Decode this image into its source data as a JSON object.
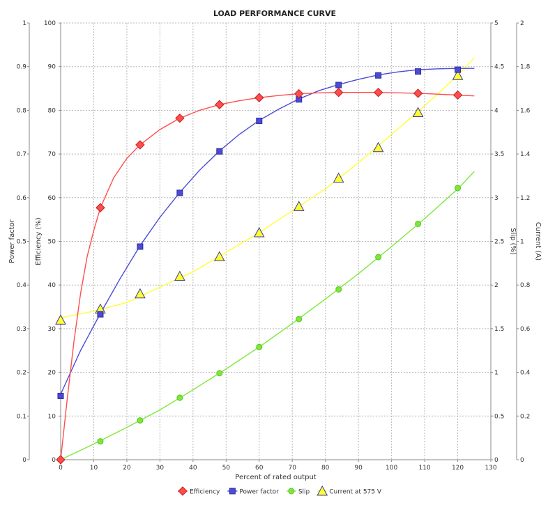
{
  "chart_data": {
    "type": "line",
    "title": "LOAD PERFORMANCE CURVE",
    "xlabel": "Percent of rated output",
    "xlim": [
      0,
      130
    ],
    "x_ticks": [
      0,
      10,
      20,
      30,
      40,
      50,
      60,
      70,
      80,
      90,
      100,
      110,
      120,
      130
    ],
    "grid": true,
    "legend_position": "bottom",
    "axes": [
      {
        "id": "pf",
        "label": "Power factor",
        "side": "left",
        "range": [
          0,
          1
        ],
        "ticks": [
          "0",
          "0.1",
          "0.2",
          "0.3",
          "0.4",
          "0.5",
          "0.6",
          "0.7",
          "0.8",
          "0.9",
          "1"
        ]
      },
      {
        "id": "eff",
        "label": "Efficiency (%)",
        "side": "left",
        "range": [
          0,
          100
        ],
        "ticks": [
          "0",
          "10",
          "20",
          "30",
          "40",
          "50",
          "60",
          "70",
          "80",
          "90",
          "100"
        ]
      },
      {
        "id": "slip",
        "label": "Slip (%)",
        "side": "right",
        "range": [
          0,
          5
        ],
        "ticks": [
          "0",
          "0.5",
          "1",
          "1.5",
          "2",
          "2.5",
          "3",
          "3.5",
          "4",
          "4.5",
          "5"
        ]
      },
      {
        "id": "cur",
        "label": "Current (A)",
        "side": "right",
        "range": [
          0,
          2
        ],
        "ticks": [
          "0",
          "0.2",
          "0.4",
          "0.6",
          "0.8",
          "1",
          "1.2",
          "1.4",
          "1.6",
          "1.8",
          "2"
        ]
      }
    ],
    "series": [
      {
        "name": "Efficiency",
        "axis": "eff",
        "color": "#ff4d4d",
        "marker": "diamond",
        "x": [
          0,
          12,
          24,
          36,
          48,
          60,
          72,
          84,
          96,
          108,
          120
        ],
        "y": [
          0,
          57.7,
          72.1,
          78.2,
          81.3,
          82.9,
          83.8,
          84.1,
          84.1,
          83.9,
          83.5
        ],
        "curve_x": [
          0,
          2,
          4,
          6,
          8,
          10,
          12,
          16,
          20,
          24,
          30,
          36,
          42,
          48,
          54,
          60,
          66,
          72,
          78,
          84,
          90,
          96,
          102,
          108,
          114,
          120,
          125
        ],
        "curve_y": [
          0,
          14,
          27,
          38,
          46.5,
          52.5,
          57.7,
          64.5,
          69,
          72.1,
          75.6,
          78.2,
          80,
          81.3,
          82.2,
          82.9,
          83.4,
          83.8,
          84,
          84.1,
          84.1,
          84.1,
          84,
          83.9,
          83.7,
          83.5,
          83.3
        ]
      },
      {
        "name": "Power factor",
        "axis": "pf",
        "color": "#4b4bd6",
        "marker": "square",
        "x": [
          0,
          12,
          24,
          36,
          48,
          60,
          72,
          84,
          96,
          108,
          120
        ],
        "y": [
          0.146,
          0.333,
          0.488,
          0.611,
          0.706,
          0.776,
          0.825,
          0.858,
          0.88,
          0.889,
          0.893
        ],
        "curve_x": [
          0,
          6,
          12,
          18,
          24,
          30,
          36,
          42,
          48,
          54,
          60,
          66,
          72,
          78,
          84,
          90,
          96,
          102,
          108,
          114,
          120,
          125
        ],
        "curve_y": [
          0.15,
          0.25,
          0.335,
          0.415,
          0.49,
          0.555,
          0.612,
          0.663,
          0.707,
          0.745,
          0.777,
          0.803,
          0.826,
          0.845,
          0.859,
          0.871,
          0.881,
          0.888,
          0.893,
          0.895,
          0.896,
          0.896
        ]
      },
      {
        "name": "Slip",
        "axis": "slip",
        "color": "#7de83a",
        "marker": "circle",
        "x": [
          12,
          24,
          36,
          48,
          60,
          72,
          84,
          96,
          108,
          120
        ],
        "y": [
          0.21,
          0.45,
          0.71,
          0.99,
          1.29,
          1.61,
          1.95,
          2.32,
          2.7,
          3.11
        ],
        "curve_x": [
          0,
          10,
          20,
          30,
          40,
          50,
          60,
          70,
          80,
          90,
          100,
          110,
          120,
          125
        ],
        "curve_y": [
          0,
          0.18,
          0.37,
          0.57,
          0.8,
          1.04,
          1.29,
          1.56,
          1.84,
          2.13,
          2.44,
          2.76,
          3.1,
          3.3
        ]
      },
      {
        "name": "Current at 575 V",
        "axis": "cur",
        "color": "#ffff33",
        "marker": "triangle",
        "x": [
          0,
          12,
          24,
          36,
          48,
          60,
          72,
          84,
          96,
          108,
          120
        ],
        "y": [
          0.64,
          0.69,
          0.76,
          0.84,
          0.93,
          1.04,
          1.16,
          1.29,
          1.43,
          1.59,
          1.76
        ],
        "curve_x": [
          0,
          10,
          20,
          30,
          40,
          50,
          60,
          70,
          80,
          90,
          100,
          110,
          120,
          125
        ],
        "curve_y": [
          0.65,
          0.68,
          0.72,
          0.79,
          0.86,
          0.95,
          1.04,
          1.14,
          1.24,
          1.36,
          1.49,
          1.62,
          1.76,
          1.84
        ]
      }
    ]
  }
}
